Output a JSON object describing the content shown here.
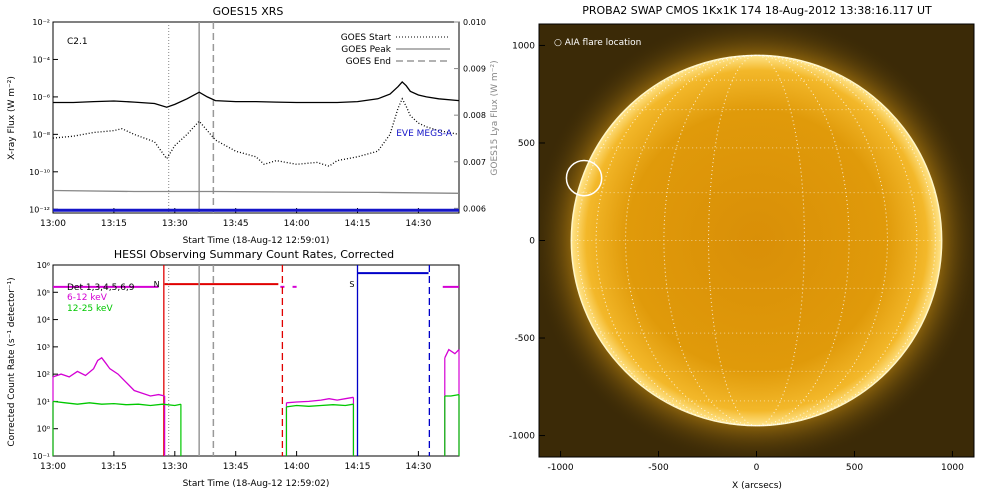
{
  "chart_data": [
    {
      "type": "line",
      "title": "GOES15 XRS",
      "xlabel": "Start Time (18-Aug-12 12:59:01)",
      "ylabel": "X-ray Flux (W m⁻²)",
      "ylabel_right": "GOES15 Lya Flux (W m⁻²)",
      "flare_class": "C2.1",
      "x_ticks": [
        "13:00",
        "13:15",
        "13:30",
        "13:45",
        "14:00",
        "14:15",
        "14:30"
      ],
      "x_ticks_min": [
        0,
        15,
        30,
        45,
        60,
        75,
        90
      ],
      "xlim_min": [
        0,
        100
      ],
      "y_ticks_left": [
        "10⁻²",
        "10⁻⁴",
        "10⁻⁶",
        "10⁻⁸",
        "10⁻¹⁰",
        "10⁻¹²"
      ],
      "y_log_left": [
        -2,
        -4,
        -6,
        -8,
        -10,
        -12
      ],
      "ylim_log_left": [
        -12.2,
        -2
      ],
      "y_ticks_right": [
        "0.010",
        "0.009",
        "0.008",
        "0.007",
        "0.006"
      ],
      "y_right_vals": [
        0.01,
        0.009,
        0.008,
        0.007,
        0.006
      ],
      "ylim_right": [
        0.0059,
        0.01
      ],
      "legend": {
        "position": "top-right",
        "entries": [
          {
            "label": "GOES Start",
            "style": "dotted"
          },
          {
            "label": "GOES Peak",
            "style": "solid"
          },
          {
            "label": "GOES End",
            "style": "dashed"
          }
        ],
        "extra_label": "EVE MEGS-A",
        "extra_color": "#1515c8"
      },
      "events_min": {
        "start": 28.5,
        "peak": 36,
        "end": 39.5
      },
      "series": [
        {
          "style": "solid",
          "color": "#000000",
          "x": [
            0,
            5,
            10,
            15,
            20,
            25,
            28,
            30,
            33,
            36,
            38,
            40,
            45,
            50,
            55,
            60,
            65,
            70,
            75,
            80,
            83,
            85,
            86,
            87,
            88,
            90,
            92,
            95,
            100
          ],
          "log_y": [
            -6.3,
            -6.3,
            -6.25,
            -6.22,
            -6.28,
            -6.35,
            -6.55,
            -6.4,
            -6.1,
            -5.75,
            -6.0,
            -6.2,
            -6.25,
            -6.25,
            -6.28,
            -6.3,
            -6.3,
            -6.3,
            -6.25,
            -6.1,
            -5.85,
            -5.45,
            -5.2,
            -5.4,
            -5.7,
            -5.9,
            -6.0,
            -6.1,
            -6.2
          ]
        },
        {
          "style": "dotted",
          "color": "#000000",
          "x": [
            0,
            5,
            10,
            15,
            17,
            20,
            25,
            28,
            30,
            33,
            36,
            38,
            40,
            45,
            50,
            52,
            55,
            60,
            65,
            68,
            70,
            75,
            80,
            83,
            85,
            86,
            87,
            88,
            90,
            92,
            95,
            100
          ],
          "log_y": [
            -8.2,
            -8.1,
            -7.9,
            -7.8,
            -7.7,
            -8.0,
            -8.4,
            -9.3,
            -8.6,
            -8.0,
            -7.3,
            -7.8,
            -8.3,
            -8.9,
            -9.2,
            -9.6,
            -9.4,
            -9.6,
            -9.5,
            -9.7,
            -9.4,
            -9.2,
            -8.9,
            -8.0,
            -6.6,
            -6.1,
            -6.5,
            -7.0,
            -7.4,
            -7.6,
            -7.8,
            -8.0
          ]
        },
        {
          "style": "solid",
          "color": "#888888",
          "x": [
            0,
            20,
            40,
            60,
            80,
            100
          ],
          "log_y": [
            -11.0,
            -11.05,
            -11.05,
            -11.08,
            -11.1,
            -11.15
          ]
        },
        {
          "style": "solid",
          "color": "#1515c8",
          "width": 3,
          "x": [
            0,
            100
          ],
          "log_y": [
            -12.05,
            -12.05
          ]
        }
      ]
    },
    {
      "type": "line",
      "title": "HESSI Observing Summary Count Rates, Corrected",
      "xlabel": "Start Time (18-Aug-12 12:59:02)",
      "ylabel": "Corrected Count Rate (s⁻¹ detector⁻¹)",
      "x_ticks": [
        "13:00",
        "13:15",
        "13:30",
        "13:45",
        "14:00",
        "14:15",
        "14:30"
      ],
      "x_ticks_min": [
        0,
        15,
        30,
        45,
        60,
        75,
        90
      ],
      "xlim_min": [
        0,
        100
      ],
      "y_ticks": [
        "10⁶",
        "10⁵",
        "10⁴",
        "10³",
        "10²",
        "10¹",
        "10⁰",
        "10⁻¹"
      ],
      "y_log": [
        6,
        5,
        4,
        3,
        2,
        1,
        0,
        -1
      ],
      "ylim_log": [
        -1,
        6
      ],
      "legend_text": [
        "Det 1,3,4,5,6,9",
        "6-12 keV",
        "12-25 keV"
      ],
      "legend_colors": [
        "#000000",
        "#d400d4",
        "#00c800"
      ],
      "markers": [
        {
          "label": "N",
          "x_min": 27,
          "color": "#e00000"
        },
        {
          "label": "S",
          "x_min": 75,
          "color": "#0000c8"
        }
      ],
      "events_min": {
        "start": 28.5,
        "peak": 36,
        "end": 39.5
      },
      "series": [
        {
          "name": "6-12 keV",
          "color": "#d400d4",
          "x": [
            0,
            2,
            4,
            6,
            8,
            10,
            11,
            12,
            13,
            14,
            16,
            18,
            20,
            22,
            24,
            26,
            27.5
          ],
          "log_y": [
            1.9,
            2.0,
            1.9,
            2.1,
            1.95,
            2.2,
            2.5,
            2.6,
            2.4,
            2.2,
            2.0,
            1.7,
            1.4,
            1.3,
            1.2,
            1.25,
            1.2
          ]
        },
        {
          "name": "6-12 keV",
          "color": "#d400d4",
          "x": [
            57.5,
            60,
            63,
            66,
            68,
            70,
            72,
            74
          ],
          "log_y": [
            0.95,
            0.98,
            1.0,
            1.05,
            1.1,
            1.05,
            1.1,
            1.15
          ]
        },
        {
          "name": "6-12 keV",
          "color": "#d400d4",
          "x": [
            96.5,
            97.5,
            99,
            100
          ],
          "log_y": [
            2.6,
            2.9,
            2.75,
            2.9
          ]
        },
        {
          "name": "12-25 keV",
          "color": "#00c800",
          "x": [
            0,
            3,
            6,
            9,
            12,
            15,
            18,
            21,
            24,
            27,
            30,
            31.5
          ],
          "log_y": [
            1.0,
            0.95,
            0.9,
            0.95,
            0.9,
            0.92,
            0.88,
            0.9,
            0.85,
            0.9,
            0.85,
            0.9
          ]
        },
        {
          "name": "12-25 keV",
          "color": "#00c800",
          "x": [
            57.5,
            60,
            63,
            66,
            69,
            72,
            74
          ],
          "log_y": [
            0.8,
            0.85,
            0.82,
            0.85,
            0.88,
            0.85,
            0.9
          ]
        },
        {
          "name": "12-25 keV",
          "color": "#00c800",
          "x": [
            96.5,
            98,
            100
          ],
          "log_y": [
            1.2,
            1.2,
            1.25
          ]
        }
      ],
      "attenuator": [
        {
          "color": "#d400d4",
          "x": [
            0,
            26
          ],
          "log_y": [
            5.2,
            5.2
          ]
        },
        {
          "color": "#e00000",
          "x": [
            27.5,
            55.5
          ],
          "log_y": [
            5.3,
            5.3
          ]
        },
        {
          "color": "#d400d4",
          "x": [
            56,
            57
          ],
          "log_y": [
            5.2,
            5.2
          ]
        },
        {
          "color": "#d400d4",
          "x": [
            59,
            60
          ],
          "log_y": [
            5.2,
            5.2
          ]
        },
        {
          "color": "#0000c8",
          "x": [
            75,
            92.5
          ],
          "log_y": [
            5.7,
            5.7
          ]
        },
        {
          "color": "#d400d4",
          "x": [
            96,
            100
          ],
          "log_y": [
            5.2,
            5.2
          ]
        }
      ],
      "gaps": [
        {
          "color": "#e00000",
          "style": "solid",
          "x": 27.3
        },
        {
          "color": "#e00000",
          "style": "dashed",
          "x": 56.5
        },
        {
          "color": "#0000c8",
          "style": "solid",
          "x": 75
        },
        {
          "color": "#0000c8",
          "style": "dashed",
          "x": 92.7
        }
      ]
    },
    {
      "type": "heatmap",
      "title": "PROBA2 SWAP CMOS 1Kx1K 174 18-Aug-2012 13:38:16.117 UT",
      "xlabel": "X (arcsecs)",
      "ylabel": "",
      "x_ticks": [
        "-1000",
        "-500",
        "0",
        "500",
        "1000"
      ],
      "x_vals": [
        -1000,
        -500,
        0,
        500,
        1000
      ],
      "y_ticks": [
        "1000",
        "500",
        "0",
        "-500",
        "-1000"
      ],
      "y_vals": [
        1000,
        500,
        0,
        -500,
        -1000
      ],
      "xlim": [
        -1110,
        1110
      ],
      "ylim": [
        -1110,
        1110
      ],
      "solar_radius": 945,
      "annotation": "○ AIA flare location",
      "flare_location": {
        "x": -880,
        "y": 320,
        "r": 90
      },
      "colors": {
        "background": "#3b2a07",
        "disk": "#e8a20c",
        "limb": "#fff2b0"
      }
    }
  ]
}
